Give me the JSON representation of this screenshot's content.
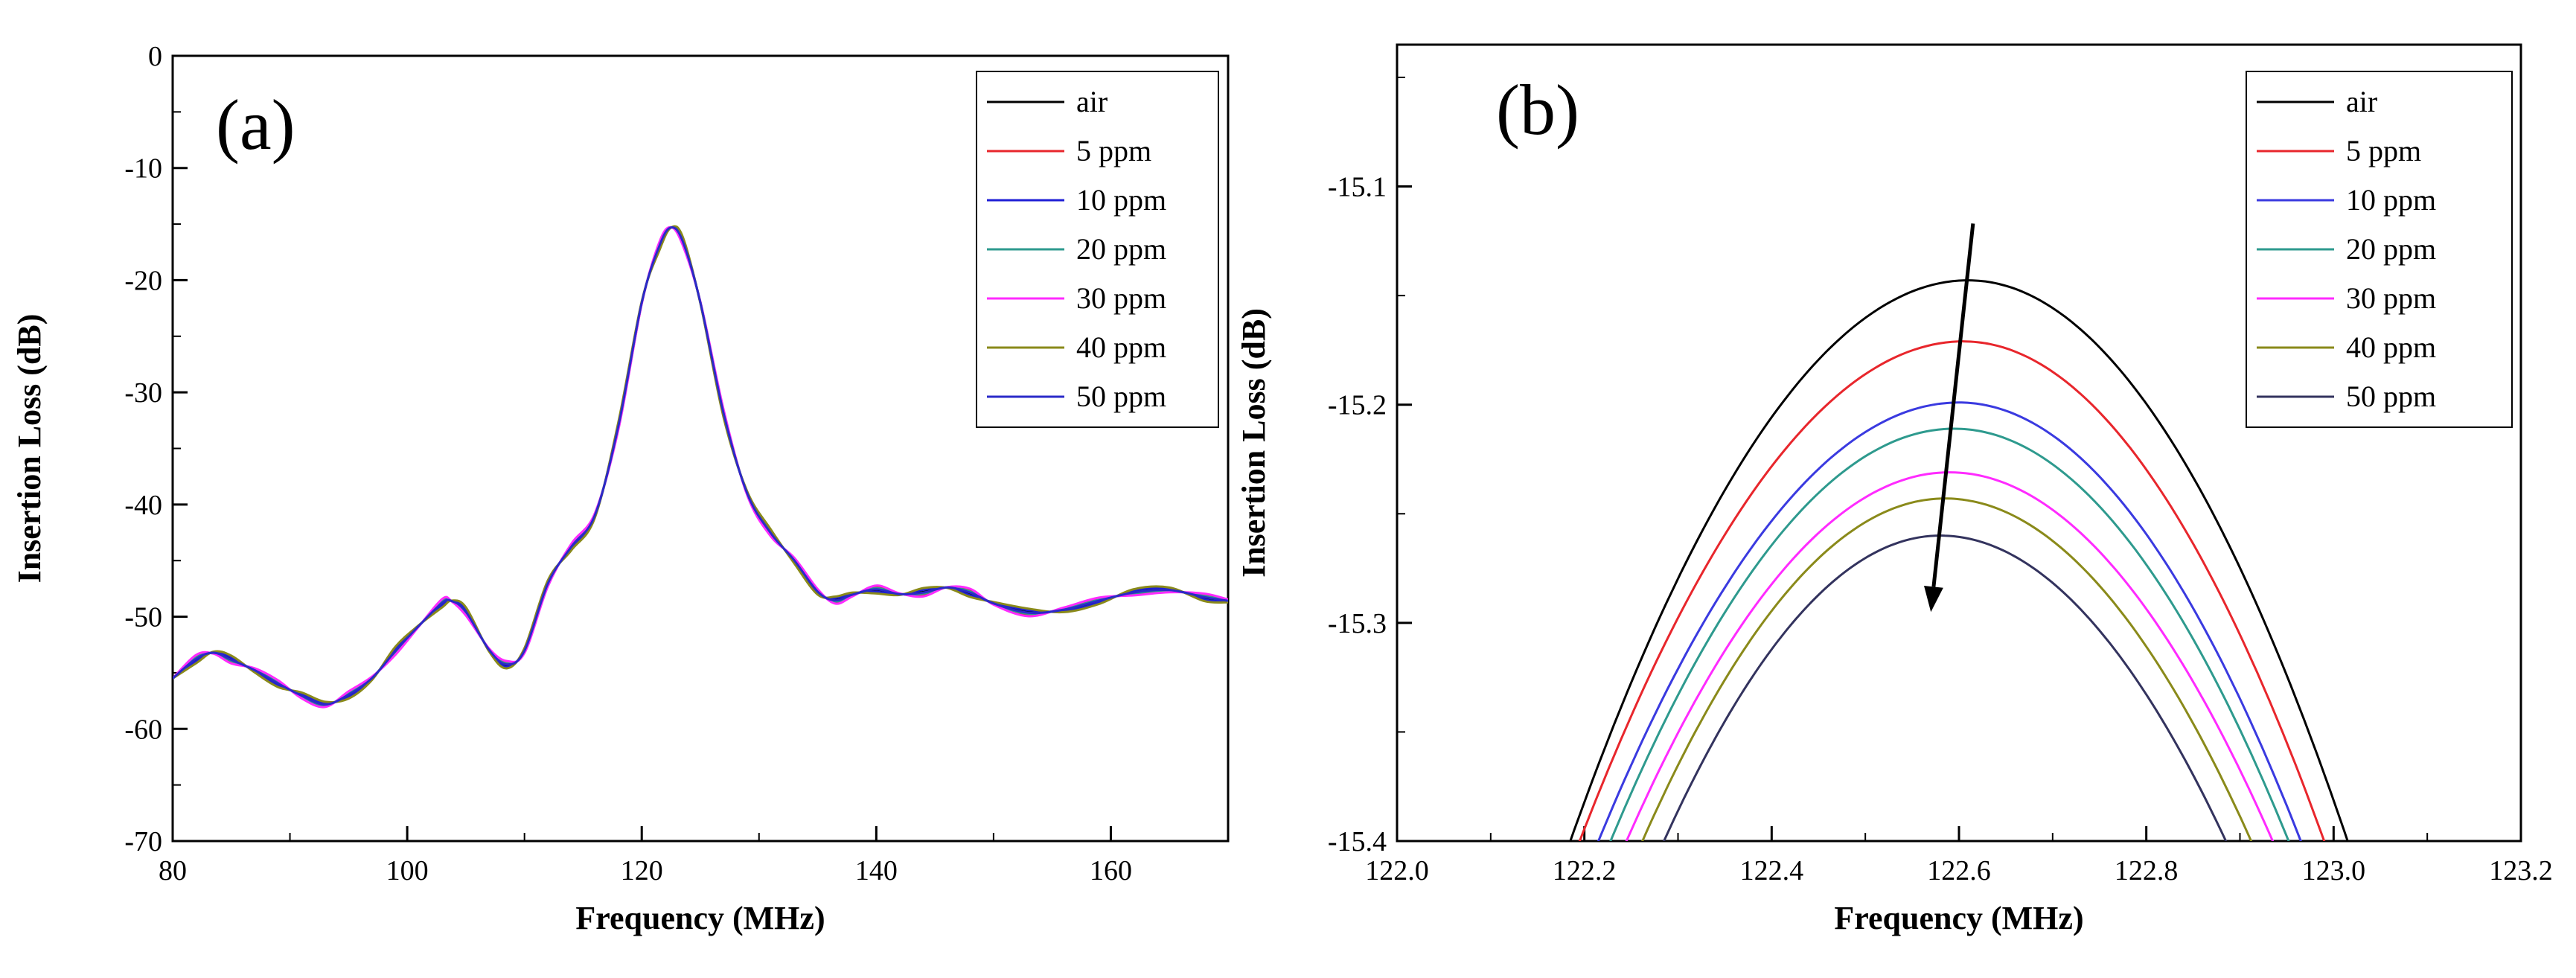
{
  "chart_data": [
    {
      "id": "a",
      "type": "line",
      "panel_label": "(a)",
      "xlabel": "Frequency (MHz)",
      "ylabel": "Insertion Loss (dB)",
      "xlim": [
        80,
        170
      ],
      "ylim": [
        -70,
        0
      ],
      "xticks": [
        80,
        100,
        120,
        140,
        160
      ],
      "yticks": [
        0,
        -10,
        -20,
        -30,
        -40,
        -50,
        -60,
        -70
      ],
      "legend_position": "top-right",
      "x": [
        80,
        82,
        83.5,
        85,
        87,
        89,
        91,
        93,
        95,
        97,
        99,
        101,
        103,
        103.8,
        105,
        107,
        108.5,
        110,
        112,
        114,
        116,
        118,
        120,
        121.5,
        122.5,
        123.5,
        125,
        127,
        129,
        131,
        133,
        135,
        136.5,
        138,
        140,
        142,
        144,
        146,
        148,
        150,
        153,
        156,
        159,
        162,
        165,
        168,
        170
      ],
      "series": [
        {
          "name": "air",
          "color": "#000000",
          "offset": 0,
          "values": [
            -55.5,
            -53.8,
            -53.2,
            -53.8,
            -54.8,
            -56.0,
            -57.0,
            -57.8,
            -57.0,
            -55.5,
            -53.0,
            -50.8,
            -48.8,
            -48.6,
            -49.5,
            -53.0,
            -54.3,
            -53.0,
            -47.0,
            -43.8,
            -41.0,
            -33.0,
            -22.0,
            -17.0,
            -15.3,
            -16.5,
            -22.0,
            -32.0,
            -39.0,
            -42.5,
            -45.0,
            -47.8,
            -48.5,
            -48.0,
            -47.6,
            -48.0,
            -47.8,
            -47.4,
            -47.9,
            -48.8,
            -49.6,
            -49.4,
            -48.6,
            -47.8,
            -47.6,
            -48.3,
            -48.6
          ]
        },
        {
          "name": "5 ppm",
          "color": "#e8262c",
          "offset": 0.3,
          "values": [
            -55.5,
            -53.8,
            -53.2,
            -53.8,
            -54.8,
            -56.0,
            -57.0,
            -57.8,
            -57.0,
            -55.5,
            -53.0,
            -50.8,
            -48.8,
            -48.6,
            -49.5,
            -53.0,
            -54.3,
            -53.0,
            -47.0,
            -43.8,
            -41.0,
            -33.0,
            -22.0,
            -17.0,
            -15.3,
            -16.5,
            -22.0,
            -32.0,
            -39.0,
            -42.5,
            -45.0,
            -47.8,
            -48.5,
            -48.0,
            -47.6,
            -48.0,
            -47.8,
            -47.4,
            -47.9,
            -48.8,
            -49.6,
            -49.4,
            -48.6,
            -47.8,
            -47.6,
            -48.3,
            -48.6
          ]
        },
        {
          "name": "10 ppm",
          "color": "#1f1fd6",
          "offset": -0.2,
          "values": [
            -55.5,
            -53.8,
            -53.2,
            -53.8,
            -54.8,
            -56.0,
            -57.0,
            -57.8,
            -57.0,
            -55.5,
            -53.0,
            -50.8,
            -48.8,
            -48.6,
            -49.5,
            -53.0,
            -54.3,
            -53.0,
            -47.0,
            -43.8,
            -41.0,
            -33.0,
            -22.0,
            -17.0,
            -15.3,
            -16.5,
            -22.0,
            -32.0,
            -39.0,
            -42.5,
            -45.0,
            -47.8,
            -48.5,
            -48.0,
            -47.6,
            -48.0,
            -47.8,
            -47.4,
            -47.9,
            -48.8,
            -49.6,
            -49.4,
            -48.6,
            -47.8,
            -47.6,
            -48.3,
            -48.6
          ]
        },
        {
          "name": "20 ppm",
          "color": "#2e9a8e",
          "offset": 0.15,
          "values": [
            -55.5,
            -53.8,
            -53.2,
            -53.8,
            -54.8,
            -56.0,
            -57.0,
            -57.8,
            -57.0,
            -55.5,
            -53.0,
            -50.8,
            -48.8,
            -48.6,
            -49.5,
            -53.0,
            -54.3,
            -53.0,
            -47.0,
            -43.8,
            -41.0,
            -33.0,
            -22.0,
            -17.0,
            -15.3,
            -16.5,
            -22.0,
            -32.0,
            -39.0,
            -42.5,
            -45.0,
            -47.8,
            -48.5,
            -48.0,
            -47.6,
            -48.0,
            -47.8,
            -47.4,
            -47.9,
            -48.8,
            -49.6,
            -49.4,
            -48.6,
            -47.8,
            -47.6,
            -48.3,
            -48.6
          ]
        },
        {
          "name": "30 ppm",
          "color": "#ff2bff",
          "offset": 0.4,
          "values": [
            -55.5,
            -53.8,
            -53.2,
            -53.8,
            -54.8,
            -56.0,
            -57.0,
            -57.8,
            -57.0,
            -55.5,
            -53.0,
            -50.8,
            -48.8,
            -48.6,
            -49.5,
            -53.0,
            -54.3,
            -53.0,
            -47.0,
            -43.8,
            -41.0,
            -33.0,
            -22.0,
            -17.0,
            -15.3,
            -16.5,
            -22.0,
            -32.0,
            -39.0,
            -42.5,
            -45.0,
            -47.8,
            -48.5,
            -48.0,
            -47.6,
            -48.0,
            -47.8,
            -47.4,
            -47.9,
            -48.8,
            -49.6,
            -49.4,
            -48.6,
            -47.8,
            -47.6,
            -48.3,
            -48.6
          ]
        },
        {
          "name": "40 ppm",
          "color": "#8a8a1a",
          "offset": -0.35,
          "values": [
            -55.5,
            -53.8,
            -53.2,
            -53.8,
            -54.8,
            -56.0,
            -57.0,
            -57.8,
            -57.0,
            -55.5,
            -53.0,
            -50.8,
            -48.8,
            -48.6,
            -49.5,
            -53.0,
            -54.3,
            -53.0,
            -47.0,
            -43.8,
            -41.0,
            -33.0,
            -22.0,
            -17.0,
            -15.3,
            -16.5,
            -22.0,
            -32.0,
            -39.0,
            -42.5,
            -45.0,
            -47.8,
            -48.5,
            -48.0,
            -47.6,
            -48.0,
            -47.8,
            -47.4,
            -47.9,
            -48.8,
            -49.6,
            -49.4,
            -48.6,
            -47.8,
            -47.6,
            -48.3,
            -48.6
          ]
        },
        {
          "name": "50 ppm",
          "color": "#2a2ac8",
          "offset": 0.05,
          "values": [
            -55.5,
            -53.8,
            -53.2,
            -53.8,
            -54.8,
            -56.0,
            -57.0,
            -57.8,
            -57.0,
            -55.5,
            -53.0,
            -50.8,
            -48.8,
            -48.6,
            -49.5,
            -53.0,
            -54.3,
            -53.0,
            -47.0,
            -43.8,
            -41.0,
            -33.0,
            -22.0,
            -17.0,
            -15.3,
            -16.5,
            -22.0,
            -32.0,
            -39.0,
            -42.5,
            -45.0,
            -47.8,
            -48.5,
            -48.0,
            -47.6,
            -48.0,
            -47.8,
            -47.4,
            -47.9,
            -48.8,
            -49.6,
            -49.4,
            -48.6,
            -47.8,
            -47.6,
            -48.3,
            -48.6
          ]
        }
      ]
    },
    {
      "id": "b",
      "type": "line",
      "panel_label": "(b)",
      "xlabel": "Frequency (MHz)",
      "ylabel": "Insertion Loss (dB)",
      "xlim": [
        122.0,
        123.2
      ],
      "ylim": [
        -15.4,
        -15.035
      ],
      "xticks": [
        "122.0",
        "122.2",
        "122.4",
        "122.6",
        "122.8",
        "123.0",
        "123.2"
      ],
      "yticks": [
        "-15.1",
        "-15.2",
        "-15.3",
        "-15.4"
      ],
      "legend_position": "top-right",
      "annotation": {
        "type": "arrow",
        "from": [
          122.615,
          -15.117
        ],
        "to": [
          122.57,
          -15.295
        ]
      },
      "series": [
        {
          "name": "air",
          "color": "#000000",
          "peak_x": 122.61,
          "peak_y": -15.143,
          "left_x": 122.185,
          "right_x": 123.015
        },
        {
          "name": "5 ppm",
          "color": "#e8262c",
          "peak_x": 122.605,
          "peak_y": -15.171,
          "left_x": 122.195,
          "right_x": 122.99
        },
        {
          "name": "10 ppm",
          "color": "#3a3ae0",
          "peak_x": 122.6,
          "peak_y": -15.199,
          "left_x": 122.215,
          "right_x": 122.965
        },
        {
          "name": "20 ppm",
          "color": "#2e9a8e",
          "peak_x": 122.595,
          "peak_y": -15.211,
          "left_x": 122.228,
          "right_x": 122.952
        },
        {
          "name": "30 ppm",
          "color": "#ff2bff",
          "peak_x": 122.59,
          "peak_y": -15.231,
          "left_x": 122.245,
          "right_x": 122.935
        },
        {
          "name": "40 ppm",
          "color": "#8a8a1a",
          "peak_x": 122.585,
          "peak_y": -15.243,
          "left_x": 122.262,
          "right_x": 122.912
        },
        {
          "name": "50 ppm",
          "color": "#33335e",
          "peak_x": 122.58,
          "peak_y": -15.26,
          "left_x": 122.285,
          "right_x": 122.885
        }
      ]
    }
  ]
}
